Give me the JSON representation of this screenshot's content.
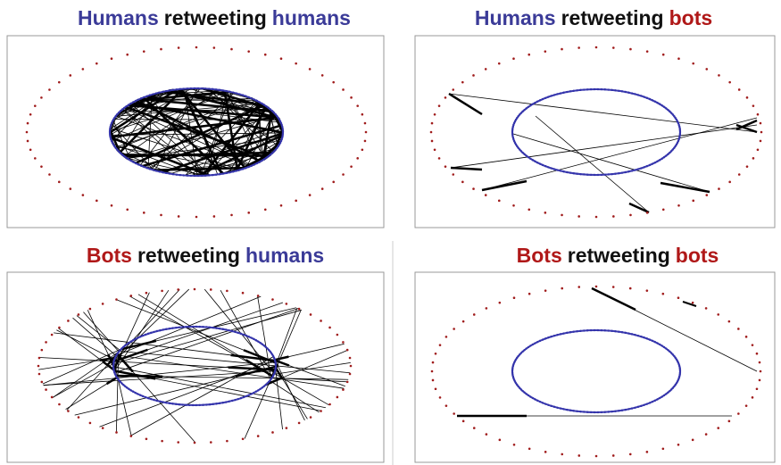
{
  "panels": [
    {
      "title": [
        {
          "text": "Humans",
          "color": "#3b3b98"
        },
        {
          "text": "retweeting",
          "color": "#111111"
        },
        {
          "text": "humans",
          "color": "#3b3b98"
        }
      ]
    },
    {
      "title": [
        {
          "text": "Humans",
          "color": "#3b3b98"
        },
        {
          "text": "retweeting",
          "color": "#111111"
        },
        {
          "text": "bots",
          "color": "#b01818"
        }
      ]
    },
    {
      "title": [
        {
          "text": "Bots",
          "color": "#b01818"
        },
        {
          "text": "retweeting",
          "color": "#111111"
        },
        {
          "text": "humans",
          "color": "#3b3b98"
        }
      ]
    },
    {
      "title": [
        {
          "text": "Bots",
          "color": "#b01818"
        },
        {
          "text": "retweeting",
          "color": "#111111"
        },
        {
          "text": "bots",
          "color": "#b01818"
        }
      ]
    }
  ]
}
